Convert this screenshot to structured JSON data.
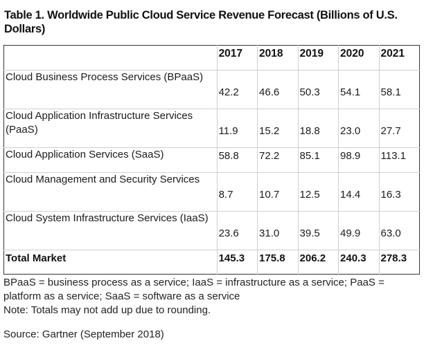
{
  "title": "Table 1. Worldwide Public Cloud Service Revenue Forecast (Billions of U.S. Dollars)",
  "table": {
    "header": [
      "",
      "2017",
      "2018",
      "2019",
      "2020",
      "2021"
    ],
    "rows": [
      {
        "label": "Cloud Business Process Services (BPaaS)",
        "values": [
          "42.2",
          "46.6",
          "50.3",
          "54.1",
          "58.1"
        ]
      },
      {
        "label": "Cloud Application Infrastructure Services (PaaS)",
        "values": [
          "11.9",
          "15.2",
          "18.8",
          "23.0",
          "27.7"
        ]
      },
      {
        "label": "Cloud Application Services (SaaS)",
        "values": [
          "58.8",
          "72.2",
          "85.1",
          "98.9",
          "113.1"
        ]
      },
      {
        "label": "Cloud Management and Security Services",
        "values": [
          "8.7",
          "10.7",
          "12.5",
          "14.4",
          "16.3"
        ]
      },
      {
        "label": "Cloud System Infrastructure Services (IaaS)",
        "values": [
          "23.6",
          "31.0",
          "39.5",
          "49.9",
          "63.0"
        ]
      }
    ],
    "total": {
      "label": "Total Market",
      "values": [
        "145.3",
        "175.8",
        "206.2",
        "240.3",
        "278.3"
      ]
    }
  },
  "notes": {
    "abbreviations": "BPaaS = business process as a service; IaaS = infrastructure as a service; PaaS = platform as a service; SaaS = software as a service",
    "note": "Note: Totals may not add up due to rounding."
  },
  "source": "Source: Gartner (September 2018)",
  "chart_data": {
    "type": "table",
    "title": "Table 1. Worldwide Public Cloud Service Revenue Forecast (Billions of U.S. Dollars)",
    "columns": [
      "2017",
      "2018",
      "2019",
      "2020",
      "2021"
    ],
    "series": [
      {
        "name": "Cloud Business Process Services (BPaaS)",
        "values": [
          42.2,
          46.6,
          50.3,
          54.1,
          58.1
        ]
      },
      {
        "name": "Cloud Application Infrastructure Services (PaaS)",
        "values": [
          11.9,
          15.2,
          18.8,
          23.0,
          27.7
        ]
      },
      {
        "name": "Cloud Application Services (SaaS)",
        "values": [
          58.8,
          72.2,
          85.1,
          98.9,
          113.1
        ]
      },
      {
        "name": "Cloud Management and Security Services",
        "values": [
          8.7,
          10.7,
          12.5,
          14.4,
          16.3
        ]
      },
      {
        "name": "Cloud System Infrastructure Services (IaaS)",
        "values": [
          23.6,
          31.0,
          39.5,
          49.9,
          63.0
        ]
      },
      {
        "name": "Total Market",
        "values": [
          145.3,
          175.8,
          206.2,
          240.3,
          278.3
        ]
      }
    ]
  }
}
